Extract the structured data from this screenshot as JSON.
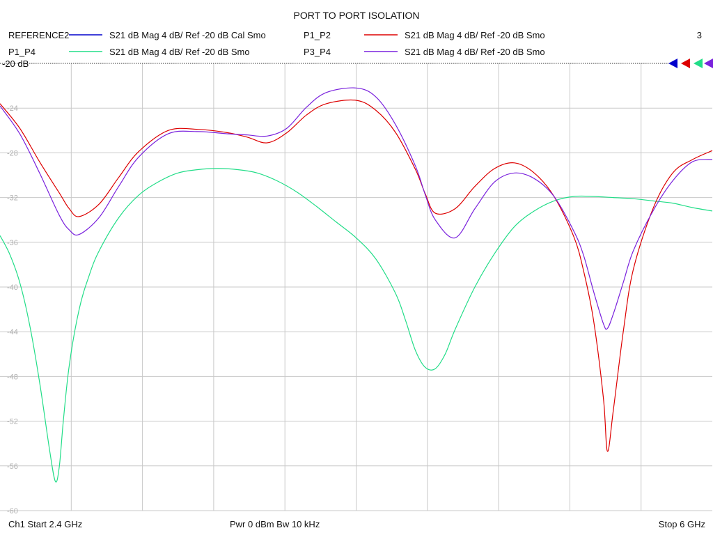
{
  "chart_data": {
    "type": "line",
    "title": "PORT TO PORT ISOLATION",
    "grid": true,
    "x_unit": "GHz",
    "xlim": [
      2.4,
      6.0
    ],
    "ylim": [
      -60,
      -20
    ],
    "y_ticks": [
      -24,
      -28,
      -32,
      -36,
      -40,
      -44,
      -48,
      -52,
      -56,
      -60
    ],
    "y_tick_labels": [
      "-24",
      "-28",
      "-32",
      "-36",
      "-40",
      "-44",
      "-48",
      "-52",
      "-56",
      "-60"
    ],
    "ref_label": "-20 dB",
    "channel_number": "3",
    "legend": [
      {
        "name": "REFERENCE2",
        "desc": "S21  dB Mag  4 dB/ Ref -20 dB  Cal Smo",
        "color": "#0000cc"
      },
      {
        "name": "P1_P2",
        "desc": "S21  dB Mag  4 dB/ Ref -20 dB  Smo",
        "color": "#dd0000"
      },
      {
        "name": "P1_P4",
        "desc": "S21  dB Mag  4 dB/ Ref -20 dB  Smo",
        "color": "#22dd88"
      },
      {
        "name": "P3_P4",
        "desc": "S21  dB Mag  4 dB/ Ref -20 dB  Smo",
        "color": "#7a22dd"
      }
    ],
    "footer": {
      "left": "Ch1  Start  2.4 GHz",
      "center": "Pwr  0 dBm  Bw  10 kHz",
      "right": "Stop  6 GHz"
    },
    "series": [
      {
        "name": "P1_P2",
        "color": "#dd0000",
        "x": [
          2.4,
          2.5,
          2.6,
          2.7,
          2.75,
          2.8,
          2.9,
          3.0,
          3.1,
          3.25,
          3.4,
          3.55,
          3.65,
          3.75,
          3.85,
          3.95,
          4.05,
          4.2,
          4.3,
          4.4,
          4.5,
          4.55,
          4.6,
          4.7,
          4.8,
          4.9,
          5.0,
          5.1,
          5.2,
          5.3,
          5.35,
          5.4,
          5.45,
          5.47,
          5.5,
          5.55,
          5.6,
          5.7,
          5.8,
          5.9,
          6.0
        ],
        "y": [
          -23.6,
          -25.8,
          -28.8,
          -31.6,
          -33.0,
          -33.7,
          -32.6,
          -30.2,
          -27.9,
          -26.0,
          -25.9,
          -26.2,
          -26.6,
          -27.1,
          -26.2,
          -24.6,
          -23.6,
          -23.3,
          -24.2,
          -26.2,
          -29.5,
          -31.7,
          -33.4,
          -33.0,
          -31.0,
          -29.4,
          -28.9,
          -29.8,
          -31.9,
          -35.5,
          -38.6,
          -43.0,
          -50.0,
          -54.7,
          -51.0,
          -44.0,
          -38.5,
          -33.0,
          -29.8,
          -28.6,
          -27.8
        ]
      },
      {
        "name": "P3_P4",
        "color": "#7a22dd",
        "x": [
          2.4,
          2.5,
          2.6,
          2.7,
          2.75,
          2.8,
          2.9,
          3.0,
          3.1,
          3.25,
          3.4,
          3.55,
          3.65,
          3.75,
          3.85,
          3.95,
          4.05,
          4.2,
          4.3,
          4.4,
          4.5,
          4.55,
          4.6,
          4.7,
          4.8,
          4.9,
          5.0,
          5.1,
          5.2,
          5.3,
          5.35,
          5.4,
          5.45,
          5.47,
          5.5,
          5.55,
          5.6,
          5.7,
          5.8,
          5.9,
          6.0
        ],
        "y": [
          -23.8,
          -26.3,
          -29.8,
          -33.6,
          -34.9,
          -35.3,
          -33.8,
          -31.0,
          -28.4,
          -26.3,
          -26.1,
          -26.3,
          -26.4,
          -26.5,
          -25.8,
          -23.9,
          -22.6,
          -22.2,
          -23.0,
          -25.5,
          -29.2,
          -31.8,
          -34.0,
          -35.6,
          -33.0,
          -30.6,
          -29.8,
          -30.3,
          -31.9,
          -35.0,
          -37.2,
          -40.4,
          -43.3,
          -43.7,
          -42.4,
          -39.6,
          -36.8,
          -33.2,
          -30.5,
          -28.8,
          -28.6
        ]
      },
      {
        "name": "P1_P4",
        "color": "#22dd88",
        "x": [
          2.4,
          2.45,
          2.5,
          2.55,
          2.6,
          2.65,
          2.68,
          2.7,
          2.72,
          2.75,
          2.8,
          2.85,
          2.9,
          3.0,
          3.1,
          3.2,
          3.3,
          3.4,
          3.5,
          3.6,
          3.7,
          3.8,
          3.9,
          4.0,
          4.1,
          4.2,
          4.3,
          4.4,
          4.45,
          4.5,
          4.55,
          4.6,
          4.65,
          4.7,
          4.8,
          4.9,
          5.0,
          5.1,
          5.2,
          5.3,
          5.4,
          5.5,
          5.6,
          5.7,
          5.8,
          5.9,
          6.0
        ],
        "y": [
          -35.4,
          -37.1,
          -39.6,
          -43.4,
          -48.5,
          -54.5,
          -57.4,
          -56.0,
          -52.0,
          -47.0,
          -42.0,
          -39.0,
          -36.8,
          -33.8,
          -31.8,
          -30.6,
          -29.8,
          -29.5,
          -29.4,
          -29.5,
          -29.8,
          -30.5,
          -31.5,
          -32.8,
          -34.2,
          -35.6,
          -37.5,
          -40.6,
          -43.0,
          -45.7,
          -47.2,
          -47.3,
          -46.0,
          -43.8,
          -40.0,
          -37.0,
          -34.6,
          -33.2,
          -32.3,
          -31.9,
          -31.9,
          -32.0,
          -32.1,
          -32.3,
          -32.5,
          -32.9,
          -33.2
        ]
      }
    ]
  }
}
